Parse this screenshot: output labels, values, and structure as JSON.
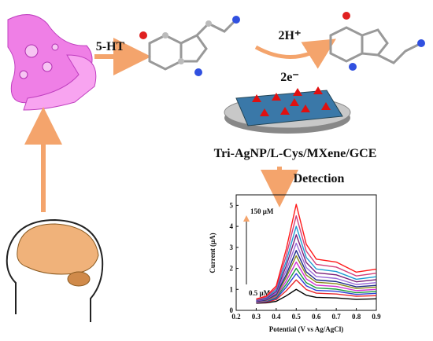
{
  "labels": {
    "neurotransmitter": "5-HT",
    "protons": "2H⁺",
    "electrons": "2e⁻",
    "electrode": "Tri-AgNP/L-Cys/MXene/GCE",
    "step": "Detection"
  },
  "chart_data": {
    "type": "line",
    "xlabel": "Potential (V vs Ag/AgCl)",
    "ylabel": "Current (μA)",
    "annotations": [
      "150 μM",
      "0.5 μM"
    ],
    "x": [
      0.3,
      0.35,
      0.4,
      0.45,
      0.5,
      0.55,
      0.6,
      0.7,
      0.8,
      0.9
    ],
    "series": [
      {
        "color": "#000000",
        "values": [
          0.34,
          0.36,
          0.43,
          0.69,
          1.0,
          0.72,
          0.62,
          0.59,
          0.52,
          0.55
        ]
      },
      {
        "color": "#e8262a",
        "values": [
          0.36,
          0.39,
          0.51,
          0.93,
          1.45,
          0.99,
          0.82,
          0.78,
          0.67,
          0.7
        ]
      },
      {
        "color": "#2a3fd6",
        "values": [
          0.37,
          0.42,
          0.56,
          1.1,
          1.75,
          1.17,
          0.95,
          0.91,
          0.76,
          0.81
        ]
      },
      {
        "color": "#1a9b3c",
        "values": [
          0.39,
          0.44,
          0.61,
          1.24,
          2.0,
          1.32,
          1.07,
          1.01,
          0.84,
          0.9
        ]
      },
      {
        "color": "#d22fd2",
        "values": [
          0.4,
          0.46,
          0.66,
          1.4,
          2.3,
          1.5,
          1.2,
          1.14,
          0.94,
          1.0
        ]
      },
      {
        "color": "#8a8a1e",
        "values": [
          0.42,
          0.48,
          0.71,
          1.57,
          2.6,
          1.68,
          1.34,
          1.27,
          1.04,
          1.11
        ]
      },
      {
        "color": "#1e2a8a",
        "values": [
          0.43,
          0.5,
          0.76,
          1.7,
          2.85,
          1.83,
          1.45,
          1.37,
          1.12,
          1.19
        ]
      },
      {
        "color": "#9a6ad8",
        "values": [
          0.45,
          0.53,
          0.82,
          1.9,
          3.2,
          2.04,
          1.61,
          1.52,
          1.23,
          1.32
        ]
      },
      {
        "color": "#7a1e7a",
        "values": [
          0.47,
          0.56,
          0.89,
          2.12,
          3.6,
          2.28,
          1.79,
          1.69,
          1.36,
          1.46
        ]
      },
      {
        "color": "#1e9bd2",
        "values": [
          0.49,
          0.6,
          0.97,
          2.34,
          4.0,
          2.52,
          1.97,
          1.85,
          1.48,
          1.6
        ]
      },
      {
        "color": "#d23f7a",
        "values": [
          0.51,
          0.64,
          1.06,
          2.61,
          4.5,
          2.82,
          2.19,
          2.06,
          1.64,
          1.77
        ]
      },
      {
        "color": "#ff1a1a",
        "values": [
          0.54,
          0.68,
          1.16,
          2.91,
          5.05,
          3.15,
          2.44,
          2.3,
          1.82,
          1.96
        ]
      }
    ],
    "xlim": [
      0.2,
      0.9
    ],
    "xticks": [
      0.2,
      0.3,
      0.4,
      0.5,
      0.6,
      0.7,
      0.8,
      0.9
    ],
    "ylim": [
      0,
      5.5
    ],
    "yticks": [
      0,
      1,
      2,
      3,
      4,
      5
    ]
  }
}
